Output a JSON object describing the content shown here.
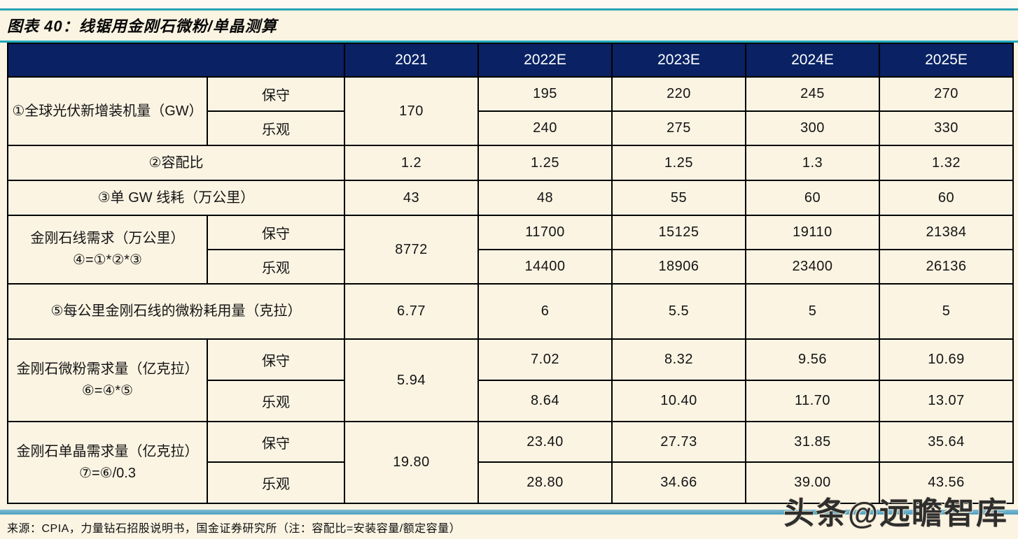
{
  "title": "图表 40：线锯用金刚石微粉/单晶测算",
  "table": {
    "year_headers": [
      "2021",
      "2022E",
      "2023E",
      "2024E",
      "2025E"
    ],
    "scenario": {
      "conservative": "保守",
      "optimistic": "乐观"
    },
    "groups": [
      {
        "label": "①全球光伏新增装机量（GW）",
        "base_2021": "170",
        "conservative": [
          "195",
          "220",
          "245",
          "270"
        ],
        "optimistic": [
          "240",
          "275",
          "300",
          "330"
        ]
      },
      {
        "label": "②容配比",
        "values": [
          "1.2",
          "1.25",
          "1.25",
          "1.3",
          "1.32"
        ]
      },
      {
        "label": "③单 GW 线耗（万公里）",
        "values": [
          "43",
          "48",
          "55",
          "60",
          "60"
        ]
      },
      {
        "label": "金刚石线需求（万公里）④=①*②*③",
        "base_2021": "8772",
        "conservative": [
          "11700",
          "15125",
          "19110",
          "21384"
        ],
        "optimistic": [
          "14400",
          "18906",
          "23400",
          "26136"
        ]
      },
      {
        "label": "⑤每公里金刚石线的微粉耗用量（克拉）",
        "values": [
          "6.77",
          "6",
          "5.5",
          "5",
          "5"
        ]
      },
      {
        "label": "金刚石微粉需求量（亿克拉）⑥=④*⑤",
        "base_2021": "5.94",
        "conservative": [
          "7.02",
          "8.32",
          "9.56",
          "10.69"
        ],
        "optimistic": [
          "8.64",
          "10.40",
          "11.70",
          "13.07"
        ]
      },
      {
        "label": "金刚石单晶需求量（亿克拉）⑦=⑥/0.3",
        "base_2021": "19.80",
        "conservative": [
          "23.40",
          "27.73",
          "31.85",
          "35.64"
        ],
        "optimistic": [
          "28.80",
          "34.66",
          "39.00",
          "43.56"
        ]
      }
    ]
  },
  "footer": {
    "source": "来源：CPIA，力量钻石招股说明书，国金证券研究所（注：容配比=安装容量/额定容量）"
  },
  "watermark": "头条@远瞻智库",
  "colors": {
    "page_bg": "#fbf4e3",
    "header_bg": "#0a2264",
    "header_text": "#ffffff",
    "accent_teal": "#2aa3b6",
    "bottom_line_blue": "#4d9fbf",
    "border": "#000000"
  }
}
